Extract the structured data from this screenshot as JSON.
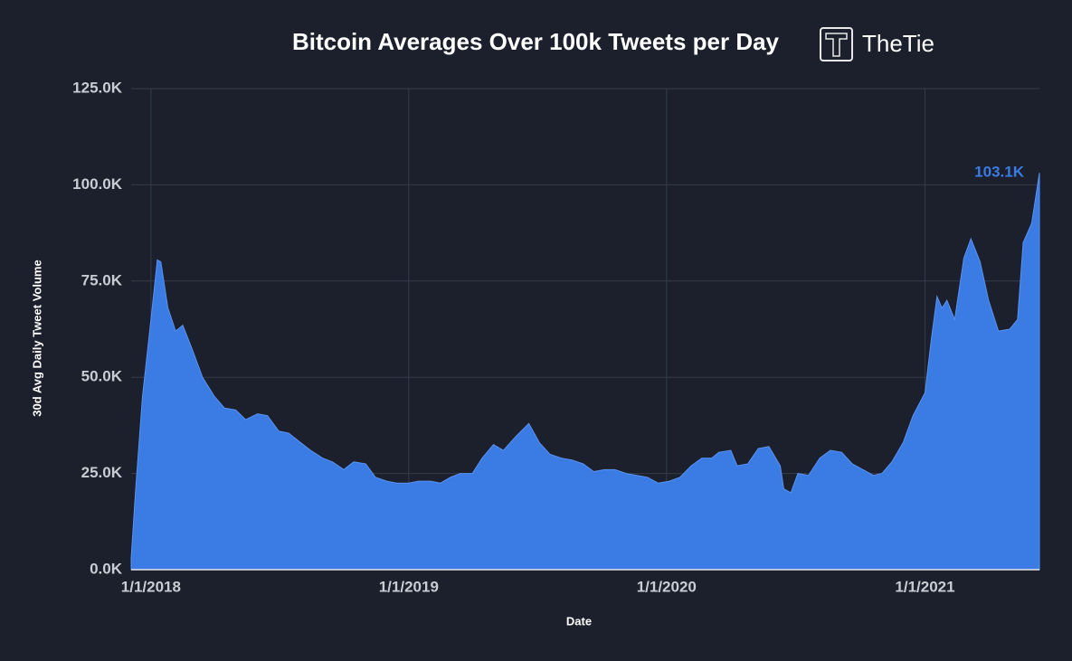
{
  "chart_data": {
    "type": "area",
    "title": "Bitcoin Averages Over 100k Tweets per Day",
    "brand": "TheTie",
    "x_label": "Date",
    "y_label": "30d Avg Daily Tweet Volume",
    "color": "#3b7be4",
    "grid": true,
    "xlim": [
      "2017-12-04",
      "2021-06-12"
    ],
    "xticks": [
      {
        "value": "2018-01-01",
        "label": "1/1/2018"
      },
      {
        "value": "2019-01-01",
        "label": "1/1/2019"
      },
      {
        "value": "2020-01-01",
        "label": "1/1/2020"
      },
      {
        "value": "2021-01-01",
        "label": "1/1/2021"
      }
    ],
    "ylim": [
      0,
      125000
    ],
    "yticks": [
      {
        "value": 0,
        "label": "0.0K"
      },
      {
        "value": 25000,
        "label": "25.0K"
      },
      {
        "value": 50000,
        "label": "50.0K"
      },
      {
        "value": 75000,
        "label": "75.0K"
      },
      {
        "value": 100000,
        "label": "100.0K"
      },
      {
        "value": 125000,
        "label": "125.0K"
      }
    ],
    "x": [
      "2017-12-04",
      "2017-12-10",
      "2017-12-20",
      "2018-01-01",
      "2018-01-10",
      "2018-01-15",
      "2018-01-25",
      "2018-02-05",
      "2018-02-15",
      "2018-03-01",
      "2018-03-15",
      "2018-04-01",
      "2018-04-15",
      "2018-05-01",
      "2018-05-15",
      "2018-06-01",
      "2018-06-15",
      "2018-07-01",
      "2018-07-15",
      "2018-08-01",
      "2018-08-15",
      "2018-09-01",
      "2018-09-15",
      "2018-10-01",
      "2018-10-15",
      "2018-11-01",
      "2018-11-15",
      "2018-12-01",
      "2018-12-15",
      "2019-01-01",
      "2019-01-15",
      "2019-02-01",
      "2019-02-15",
      "2019-03-01",
      "2019-03-15",
      "2019-04-01",
      "2019-04-15",
      "2019-05-01",
      "2019-05-15",
      "2019-06-01",
      "2019-06-20",
      "2019-07-05",
      "2019-07-20",
      "2019-08-05",
      "2019-08-20",
      "2019-09-05",
      "2019-09-20",
      "2019-10-05",
      "2019-10-20",
      "2019-11-05",
      "2019-11-20",
      "2019-12-05",
      "2019-12-20",
      "2020-01-05",
      "2020-01-20",
      "2020-02-05",
      "2020-02-20",
      "2020-03-05",
      "2020-03-15",
      "2020-04-01",
      "2020-04-10",
      "2020-04-25",
      "2020-05-10",
      "2020-05-25",
      "2020-06-10",
      "2020-06-15",
      "2020-06-25",
      "2020-07-05",
      "2020-07-20",
      "2020-08-05",
      "2020-08-20",
      "2020-09-05",
      "2020-09-20",
      "2020-10-05",
      "2020-10-20",
      "2020-11-01",
      "2020-11-15",
      "2020-12-01",
      "2020-12-15",
      "2021-01-01",
      "2021-01-10",
      "2021-01-18",
      "2021-01-25",
      "2021-02-01",
      "2021-02-12",
      "2021-02-25",
      "2021-03-07",
      "2021-03-20",
      "2021-04-01",
      "2021-04-15",
      "2021-05-01",
      "2021-05-12",
      "2021-05-20",
      "2021-06-01",
      "2021-06-12"
    ],
    "values": [
      3000,
      20000,
      45000,
      65000,
      80500,
      80000,
      68000,
      62000,
      63500,
      57000,
      50000,
      45000,
      42000,
      41500,
      39000,
      40500,
      40000,
      36000,
      35500,
      33000,
      31000,
      29000,
      28000,
      26000,
      28000,
      27500,
      24000,
      23000,
      22500,
      22500,
      23000,
      23000,
      22500,
      24000,
      25000,
      25000,
      29000,
      32500,
      31000,
      34500,
      38000,
      33000,
      30000,
      29000,
      28500,
      27500,
      25500,
      26000,
      26000,
      25000,
      24500,
      24000,
      22500,
      23000,
      24000,
      27000,
      29000,
      29000,
      30500,
      31000,
      27000,
      27500,
      31500,
      32000,
      27000,
      21000,
      20000,
      25000,
      24500,
      29000,
      31000,
      30500,
      27500,
      26000,
      24500,
      25000,
      28000,
      33000,
      40000,
      46000,
      60000,
      71000,
      68000,
      70000,
      65000,
      81000,
      86000,
      80000,
      70000,
      62000,
      62500,
      65000,
      85000,
      90000,
      103100
    ],
    "annotation": {
      "text": "103.1K",
      "x": "2021-06-12",
      "y": 103100
    }
  }
}
